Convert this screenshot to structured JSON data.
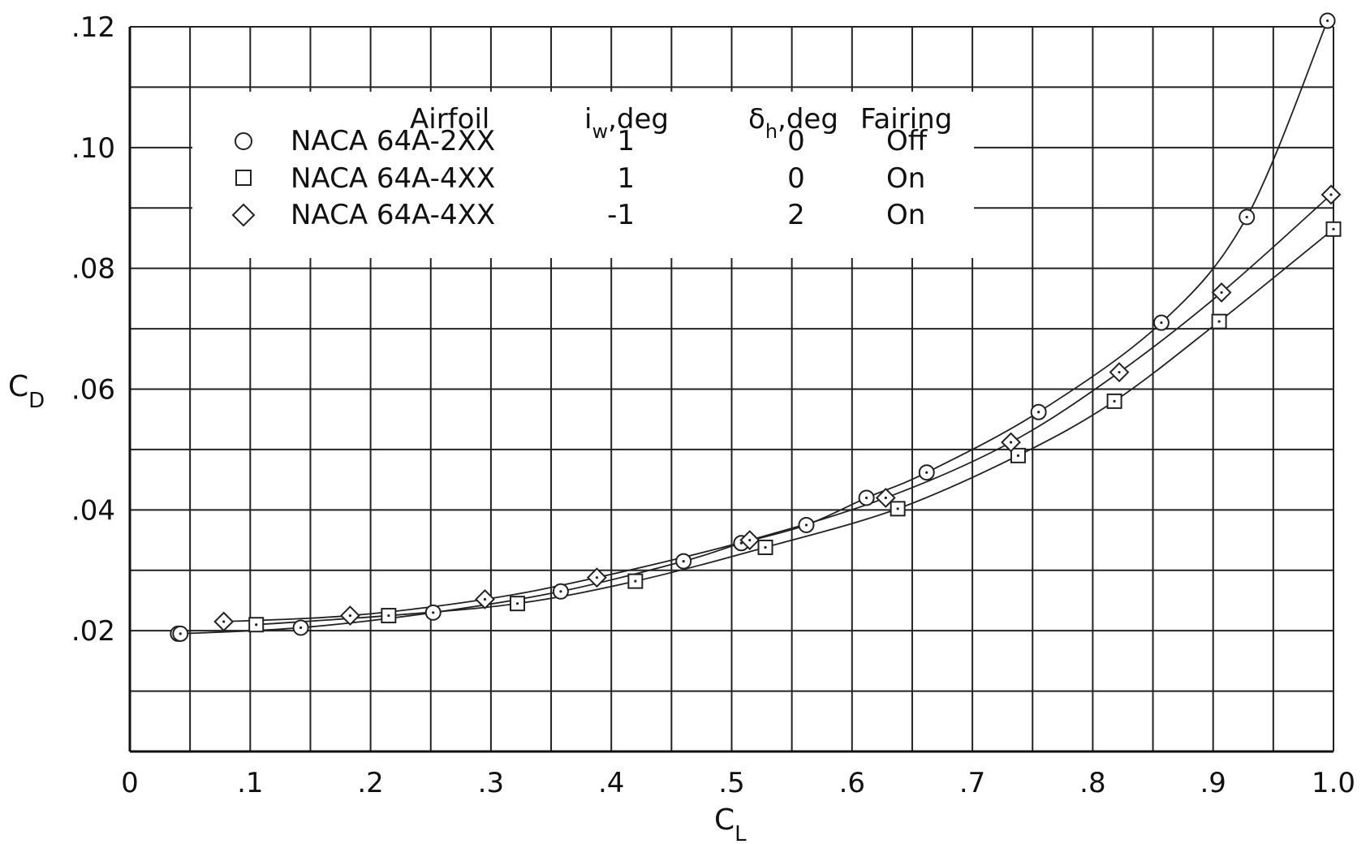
{
  "chart_data": {
    "type": "scatter",
    "title": "",
    "xlabel": "C",
    "xlabel_sub": "L",
    "ylabel": "C",
    "ylabel_sub": "D",
    "xlim": [
      0,
      1.0
    ],
    "ylim": [
      0,
      0.12
    ],
    "x_ticks": [
      {
        "value": 0,
        "label": "0"
      },
      {
        "value": 0.1,
        "label": ".1"
      },
      {
        "value": 0.2,
        "label": ".2"
      },
      {
        "value": 0.3,
        "label": ".3"
      },
      {
        "value": 0.4,
        "label": ".4"
      },
      {
        "value": 0.5,
        "label": ".5"
      },
      {
        "value": 0.6,
        "label": ".6"
      },
      {
        "value": 0.7,
        "label": ".7"
      },
      {
        "value": 0.8,
        "label": ".8"
      },
      {
        "value": 0.9,
        "label": ".9"
      },
      {
        "value": 1.0,
        "label": "1.0"
      }
    ],
    "y_ticks": [
      {
        "value": 0.02,
        "label": ".02"
      },
      {
        "value": 0.04,
        "label": ".04"
      },
      {
        "value": 0.06,
        "label": ".06"
      },
      {
        "value": 0.08,
        "label": ".08"
      },
      {
        "value": 0.1,
        "label": ".10"
      },
      {
        "value": 0.12,
        "label": ".12"
      }
    ],
    "x_grid_step": 0.05,
    "y_grid_step": 0.01,
    "grid": true,
    "legend": {
      "placement": "top-left",
      "headers": {
        "airfoil": "Airfoil",
        "iw_main": "i",
        "iw_sub": "w",
        "iw_unit": ",deg",
        "dh_main": "δ",
        "dh_sub": "h",
        "dh_unit": ",deg",
        "fairing": "Fairing"
      }
    },
    "series": [
      {
        "name": "NACA 64A-2XX",
        "marker": "circle",
        "iw": "1",
        "dh": "0",
        "fairing": "Off",
        "points": [
          [
            0.04,
            0.0195
          ],
          [
            0.042,
            0.0195
          ],
          [
            0.142,
            0.0205
          ],
          [
            0.252,
            0.023
          ],
          [
            0.358,
            0.0265
          ],
          [
            0.46,
            0.0315
          ],
          [
            0.508,
            0.0345
          ],
          [
            0.562,
            0.0375
          ],
          [
            0.612,
            0.042
          ],
          [
            0.662,
            0.0462
          ],
          [
            0.755,
            0.0562
          ],
          [
            0.857,
            0.071
          ],
          [
            0.928,
            0.0885
          ],
          [
            0.995,
            0.121
          ]
        ]
      },
      {
        "name": "NACA 64A-4XX",
        "marker": "square",
        "iw": "1",
        "dh": "0",
        "fairing": "On",
        "points": [
          [
            0.105,
            0.021
          ],
          [
            0.215,
            0.0225
          ],
          [
            0.322,
            0.0245
          ],
          [
            0.42,
            0.0282
          ],
          [
            0.528,
            0.0338
          ],
          [
            0.638,
            0.0402
          ],
          [
            0.738,
            0.049
          ],
          [
            0.818,
            0.058
          ],
          [
            0.905,
            0.0712
          ],
          [
            1.0,
            0.0865
          ]
        ]
      },
      {
        "name": "NACA 64A-4XX",
        "marker": "diamond",
        "iw": "-1",
        "dh": "2",
        "fairing": "On",
        "points": [
          [
            0.078,
            0.0215
          ],
          [
            0.183,
            0.0225
          ],
          [
            0.295,
            0.0252
          ],
          [
            0.388,
            0.0288
          ],
          [
            0.515,
            0.035
          ],
          [
            0.628,
            0.042
          ],
          [
            0.732,
            0.0512
          ],
          [
            0.822,
            0.0628
          ],
          [
            0.907,
            0.076
          ],
          [
            0.998,
            0.0922
          ]
        ]
      }
    ]
  }
}
